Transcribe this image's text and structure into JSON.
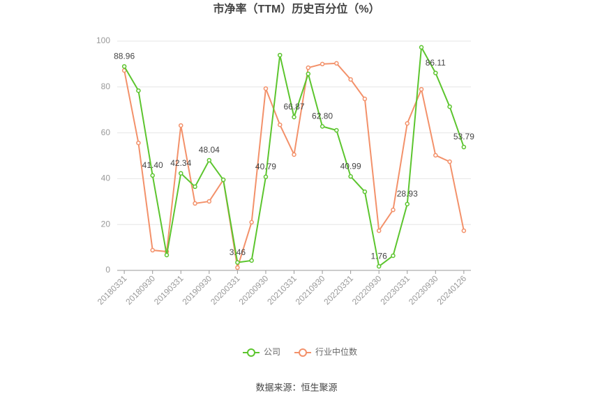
{
  "chart_data": {
    "type": "line",
    "title": "市净率（TTM）历史百分位（%）",
    "source": "数据来源：恒生聚源",
    "categories": [
      "20180331",
      null,
      "20180930",
      null,
      "20190331",
      null,
      "20190930",
      null,
      "20200331",
      null,
      "20200930",
      null,
      "20210331",
      null,
      "20210930",
      null,
      "20220331",
      null,
      "20220930",
      null,
      "20230331",
      null,
      "20230930",
      null,
      "20240126"
    ],
    "series": [
      {
        "name": "公司",
        "color": "#5cc52e",
        "values": [
          88.96,
          78.4,
          41.4,
          6.7,
          42.34,
          36.5,
          48.04,
          39.5,
          3.46,
          4.3,
          40.79,
          93.9,
          66.87,
          85.7,
          62.8,
          61.1,
          40.99,
          34.3,
          1.76,
          6.4,
          28.93,
          97.3,
          86.11,
          71.4,
          53.79
        ],
        "value_labels": [
          "88.96",
          null,
          "41.40",
          null,
          "42.34",
          null,
          "48.04",
          null,
          "3.46",
          null,
          "40.79",
          null,
          "66.87",
          null,
          "62.80",
          null,
          "40.99",
          null,
          "1.76",
          null,
          "28.93",
          null,
          "86.11",
          null,
          "53.79"
        ]
      },
      {
        "name": "行业中位数",
        "color": "#f3916a",
        "values": [
          87.2,
          55.6,
          8.8,
          8.2,
          63.2,
          29.2,
          30.1,
          39.5,
          1.2,
          21.0,
          79.3,
          63.5,
          50.5,
          88.4,
          90.0,
          90.3,
          83.3,
          74.8,
          17.3,
          26.4,
          64.1,
          79.0,
          50.2,
          47.4,
          17.3
        ]
      }
    ],
    "ylim": [
      0,
      100
    ],
    "yticks": [
      0,
      20,
      40,
      60,
      80,
      100
    ],
    "grid": true,
    "legend": "bottom"
  }
}
